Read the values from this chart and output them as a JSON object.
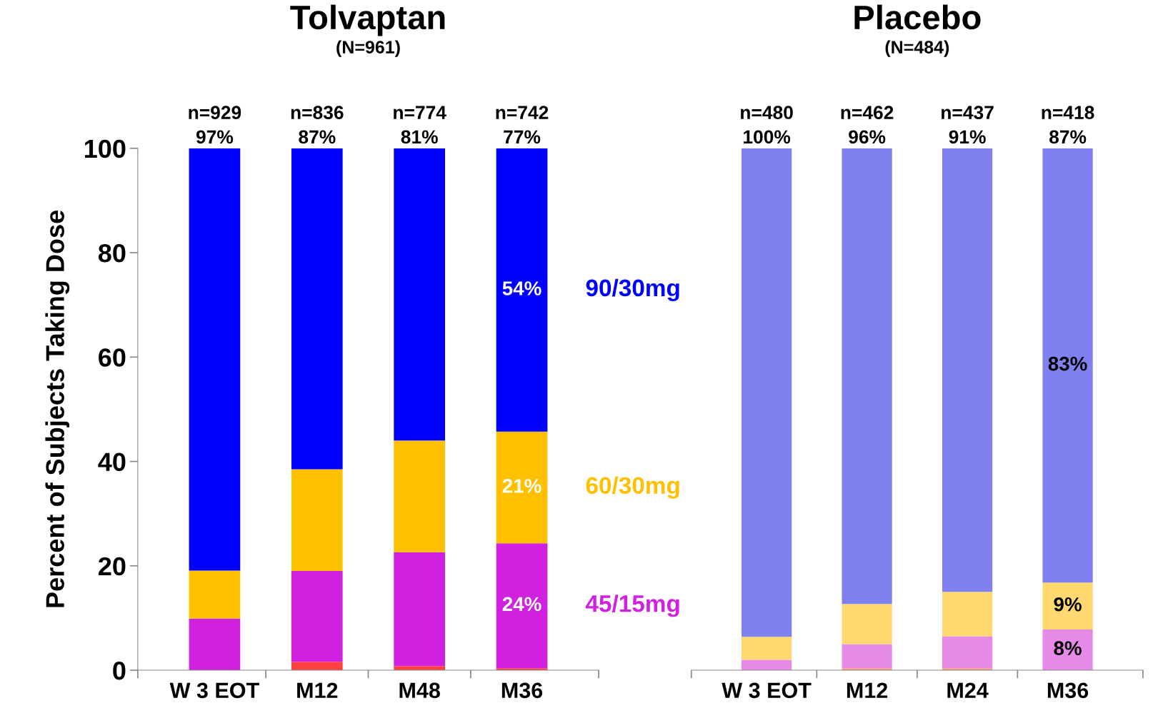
{
  "chart_data": [
    {
      "type": "bar",
      "stacked": true,
      "title": "Tolvaptan",
      "subtitle": "(N=961)",
      "ylabel": "Percent of Subjects Taking Dose",
      "categories": [
        "W 3 EOT",
        "M12",
        "M48",
        "M36"
      ],
      "ylim": [
        0,
        100
      ],
      "yticks": [
        0,
        20,
        40,
        60,
        80,
        100
      ],
      "series": [
        {
          "color": "#ff4040",
          "values": [
            null,
            1.6,
            0.8,
            0.4
          ]
        },
        {
          "name": "45/15mg",
          "color": "#d020e0",
          "values": [
            9.9,
            17.4,
            21.8,
            23.9
          ],
          "value_labels": [
            null,
            null,
            null,
            "24%"
          ]
        },
        {
          "name": "60/30mg",
          "color": "#ffc000",
          "values": [
            9.2,
            19.5,
            21.4,
            21.4
          ],
          "value_labels": [
            null,
            null,
            null,
            "21%"
          ]
        },
        {
          "name": "90/30mg",
          "color": "#0000ff",
          "values": [
            80.9,
            61.5,
            56.0,
            54.3
          ],
          "value_labels": [
            null,
            null,
            null,
            "54%"
          ]
        }
      ],
      "annotations": [
        {
          "text": "n=929\n97%",
          "x": "W 3 EOT",
          "y": 100
        },
        {
          "text": "n=836\n87%",
          "x": "M12",
          "y": 100
        },
        {
          "text": "n=774\n81%",
          "x": "M48",
          "y": 100
        },
        {
          "text": "n=742\n77%",
          "x": "M36",
          "y": 100
        }
      ]
    },
    {
      "type": "bar",
      "stacked": true,
      "title": "Placebo",
      "subtitle": "(N=484)",
      "categories": [
        "W 3 EOT",
        "M12",
        "M24",
        "M36"
      ],
      "ylim": [
        0,
        100
      ],
      "tick_labels": "x",
      "series": [
        {
          "color": "#f5a080",
          "values": [
            null,
            0.4,
            0.4,
            null
          ]
        },
        {
          "color": "#e68ae8",
          "values": [
            2.0,
            4.6,
            6.1,
            7.8
          ],
          "value_labels": [
            null,
            null,
            null,
            "8%"
          ]
        },
        {
          "color": "#ffd870",
          "values": [
            4.4,
            7.7,
            8.5,
            9.0
          ],
          "value_labels": [
            null,
            null,
            null,
            "9%"
          ]
        },
        {
          "color": "#8080f0",
          "values": [
            93.6,
            87.3,
            85.0,
            83.2
          ],
          "value_labels": [
            null,
            null,
            null,
            "83%"
          ]
        }
      ],
      "annotations": [
        {
          "text": "n=480\n100%",
          "x": "W 3 EOT",
          "y": 100
        },
        {
          "text": "n=462\n96%",
          "x": "M12",
          "y": 100
        },
        {
          "text": "n=437\n91%",
          "x": "M24",
          "y": 100
        },
        {
          "text": "n=418\n87%",
          "x": "M36",
          "y": 100
        }
      ]
    }
  ]
}
